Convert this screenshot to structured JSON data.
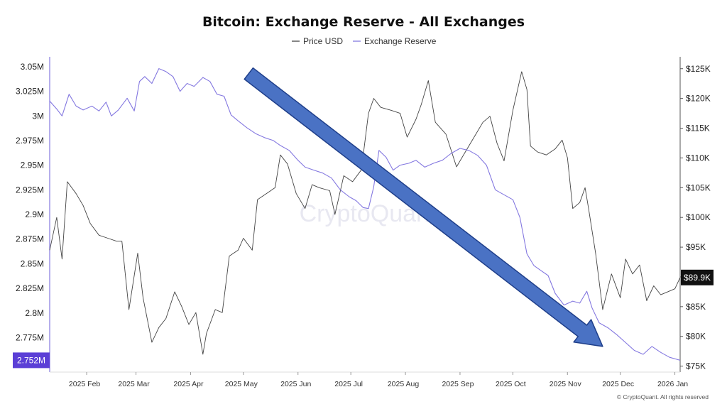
{
  "chart_data": {
    "type": "line",
    "title": "Bitcoin: Exchange Reserve - All Exchanges",
    "x_range": [
      "2025-01-11",
      "2026-01-04"
    ],
    "x_ticks": [
      "2025 Feb",
      "2025 Mar",
      "2025 Apr",
      "2025 May",
      "2025 Jun",
      "2025 Jul",
      "2025 Aug",
      "2025 Sep",
      "2025 Oct",
      "2025 Nov",
      "2025 Dec",
      "2026 Jan"
    ],
    "y_left": {
      "range": [
        2740000,
        3060000
      ],
      "ticks": [
        2775000,
        2800000,
        2825000,
        2850000,
        2875000,
        2900000,
        2925000,
        2950000,
        2975000,
        3000000,
        3025000,
        3050000
      ],
      "tick_labels": [
        "2.775M",
        "2.8M",
        "2.825M",
        "2.85M",
        "2.875M",
        "2.9M",
        "2.925M",
        "2.95M",
        "2.975M",
        "3M",
        "3.025M",
        "3.05M"
      ],
      "current_label": "2.752M",
      "current_value": 2752000
    },
    "y_right": {
      "range": [
        74000,
        127000
      ],
      "ticks": [
        75000,
        80000,
        85000,
        90000,
        95000,
        100000,
        105000,
        110000,
        115000,
        120000,
        125000
      ],
      "tick_labels": [
        "$75K",
        "$80K",
        "$85K",
        "$90K",
        "$95K",
        "$100K",
        "$105K",
        "$110K",
        "$115K",
        "$120K",
        "$125K"
      ],
      "current_label": "$89.9K",
      "current_value": 89900
    },
    "series": [
      {
        "name": "Price USD",
        "axis": "right",
        "color": "#444444",
        "points": [
          [
            "2025-01-11",
            94500
          ],
          [
            "2025-01-15",
            100000
          ],
          [
            "2025-01-18",
            93000
          ],
          [
            "2025-01-21",
            106000
          ],
          [
            "2025-01-26",
            104000
          ],
          [
            "2025-01-30",
            102000
          ],
          [
            "2025-02-03",
            99000
          ],
          [
            "2025-02-08",
            97000
          ],
          [
            "2025-02-13",
            96500
          ],
          [
            "2025-02-18",
            96000
          ],
          [
            "2025-02-21",
            96000
          ],
          [
            "2025-02-25",
            84500
          ],
          [
            "2025-03-02",
            94000
          ],
          [
            "2025-03-05",
            86500
          ],
          [
            "2025-03-10",
            79000
          ],
          [
            "2025-03-14",
            81500
          ],
          [
            "2025-03-18",
            83000
          ],
          [
            "2025-03-23",
            87500
          ],
          [
            "2025-03-27",
            85000
          ],
          [
            "2025-03-31",
            82000
          ],
          [
            "2025-04-04",
            84000
          ],
          [
            "2025-04-08",
            77000
          ],
          [
            "2025-04-10",
            80500
          ],
          [
            "2025-04-15",
            84500
          ],
          [
            "2025-04-19",
            84000
          ],
          [
            "2025-04-23",
            93500
          ],
          [
            "2025-04-28",
            94500
          ],
          [
            "2025-05-01",
            96500
          ],
          [
            "2025-05-06",
            94500
          ],
          [
            "2025-05-09",
            103000
          ],
          [
            "2025-05-14",
            104000
          ],
          [
            "2025-05-19",
            105000
          ],
          [
            "2025-05-22",
            110500
          ],
          [
            "2025-05-26",
            109000
          ],
          [
            "2025-05-31",
            104000
          ],
          [
            "2025-06-05",
            101500
          ],
          [
            "2025-06-09",
            105500
          ],
          [
            "2025-06-13",
            105000
          ],
          [
            "2025-06-19",
            104500
          ],
          [
            "2025-06-22",
            100500
          ],
          [
            "2025-06-27",
            107000
          ],
          [
            "2025-07-02",
            106000
          ],
          [
            "2025-07-07",
            108000
          ],
          [
            "2025-07-11",
            117500
          ],
          [
            "2025-07-14",
            120000
          ],
          [
            "2025-07-18",
            118500
          ],
          [
            "2025-07-24",
            118000
          ],
          [
            "2025-07-29",
            117500
          ],
          [
            "2025-08-02",
            113500
          ],
          [
            "2025-08-07",
            116500
          ],
          [
            "2025-08-10",
            119000
          ],
          [
            "2025-08-14",
            123000
          ],
          [
            "2025-08-18",
            116000
          ],
          [
            "2025-08-24",
            114000
          ],
          [
            "2025-08-30",
            108500
          ],
          [
            "2025-09-04",
            111000
          ],
          [
            "2025-09-10",
            114000
          ],
          [
            "2025-09-14",
            116000
          ],
          [
            "2025-09-18",
            117000
          ],
          [
            "2025-09-22",
            112500
          ],
          [
            "2025-09-26",
            109500
          ],
          [
            "2025-10-01",
            118000
          ],
          [
            "2025-10-06",
            124500
          ],
          [
            "2025-10-09",
            121500
          ],
          [
            "2025-10-11",
            112000
          ],
          [
            "2025-10-15",
            111000
          ],
          [
            "2025-10-20",
            110500
          ],
          [
            "2025-10-25",
            111500
          ],
          [
            "2025-10-29",
            113000
          ],
          [
            "2025-11-01",
            110000
          ],
          [
            "2025-11-04",
            101500
          ],
          [
            "2025-11-08",
            102500
          ],
          [
            "2025-11-11",
            105000
          ],
          [
            "2025-11-13",
            101500
          ],
          [
            "2025-11-17",
            94000
          ],
          [
            "2025-11-21",
            84500
          ],
          [
            "2025-11-26",
            90500
          ],
          [
            "2025-12-01",
            86500
          ],
          [
            "2025-12-04",
            93000
          ],
          [
            "2025-12-08",
            90500
          ],
          [
            "2025-12-12",
            92000
          ],
          [
            "2025-12-16",
            86000
          ],
          [
            "2025-12-20",
            88500
          ],
          [
            "2025-12-24",
            87000
          ],
          [
            "2025-12-28",
            87500
          ],
          [
            "2026-01-01",
            88000
          ],
          [
            "2026-01-04",
            89900
          ]
        ]
      },
      {
        "name": "Exchange Reserve",
        "axis": "left",
        "color": "#8478e0",
        "points": [
          [
            "2025-01-11",
            3015000
          ],
          [
            "2025-01-15",
            3007000
          ],
          [
            "2025-01-18",
            3000000
          ],
          [
            "2025-01-22",
            3022000
          ],
          [
            "2025-01-26",
            3010000
          ],
          [
            "2025-01-30",
            3006000
          ],
          [
            "2025-02-04",
            3010000
          ],
          [
            "2025-02-08",
            3005000
          ],
          [
            "2025-02-12",
            3014000
          ],
          [
            "2025-02-15",
            3000000
          ],
          [
            "2025-02-19",
            3006000
          ],
          [
            "2025-02-24",
            3018000
          ],
          [
            "2025-02-28",
            3005000
          ],
          [
            "2025-03-03",
            3035000
          ],
          [
            "2025-03-06",
            3040000
          ],
          [
            "2025-03-10",
            3033000
          ],
          [
            "2025-03-14",
            3048000
          ],
          [
            "2025-03-18",
            3045000
          ],
          [
            "2025-03-22",
            3040000
          ],
          [
            "2025-03-26",
            3025000
          ],
          [
            "2025-03-30",
            3033000
          ],
          [
            "2025-04-03",
            3030000
          ],
          [
            "2025-04-08",
            3039000
          ],
          [
            "2025-04-12",
            3035000
          ],
          [
            "2025-04-16",
            3022000
          ],
          [
            "2025-04-20",
            3020000
          ],
          [
            "2025-04-24",
            3001000
          ],
          [
            "2025-04-28",
            2995000
          ],
          [
            "2025-05-03",
            2988000
          ],
          [
            "2025-05-08",
            2982000
          ],
          [
            "2025-05-13",
            2978000
          ],
          [
            "2025-05-18",
            2975000
          ],
          [
            "2025-05-22",
            2970000
          ],
          [
            "2025-05-27",
            2965000
          ],
          [
            "2025-06-01",
            2955000
          ],
          [
            "2025-06-05",
            2948000
          ],
          [
            "2025-06-10",
            2945000
          ],
          [
            "2025-06-15",
            2942000
          ],
          [
            "2025-06-20",
            2937000
          ],
          [
            "2025-06-25",
            2925000
          ],
          [
            "2025-06-30",
            2918000
          ],
          [
            "2025-07-04",
            2914000
          ],
          [
            "2025-07-08",
            2907000
          ],
          [
            "2025-07-11",
            2906000
          ],
          [
            "2025-07-14",
            2928000
          ],
          [
            "2025-07-17",
            2965000
          ],
          [
            "2025-07-21",
            2958000
          ],
          [
            "2025-07-25",
            2945000
          ],
          [
            "2025-07-29",
            2950000
          ],
          [
            "2025-08-03",
            2952000
          ],
          [
            "2025-08-07",
            2955000
          ],
          [
            "2025-08-12",
            2948000
          ],
          [
            "2025-08-17",
            2952000
          ],
          [
            "2025-08-22",
            2955000
          ],
          [
            "2025-08-27",
            2962000
          ],
          [
            "2025-09-01",
            2967000
          ],
          [
            "2025-09-06",
            2965000
          ],
          [
            "2025-09-11",
            2960000
          ],
          [
            "2025-09-16",
            2950000
          ],
          [
            "2025-09-21",
            2925000
          ],
          [
            "2025-09-26",
            2920000
          ],
          [
            "2025-10-01",
            2915000
          ],
          [
            "2025-10-05",
            2897000
          ],
          [
            "2025-10-09",
            2860000
          ],
          [
            "2025-10-13",
            2848000
          ],
          [
            "2025-10-17",
            2843000
          ],
          [
            "2025-10-21",
            2838000
          ],
          [
            "2025-10-25",
            2820000
          ],
          [
            "2025-10-30",
            2808000
          ],
          [
            "2025-11-04",
            2812000
          ],
          [
            "2025-11-08",
            2810000
          ],
          [
            "2025-11-12",
            2822000
          ],
          [
            "2025-11-15",
            2805000
          ],
          [
            "2025-11-19",
            2790000
          ],
          [
            "2025-11-24",
            2785000
          ],
          [
            "2025-11-29",
            2778000
          ],
          [
            "2025-12-04",
            2770000
          ],
          [
            "2025-12-09",
            2762000
          ],
          [
            "2025-12-14",
            2758000
          ],
          [
            "2025-12-19",
            2766000
          ],
          [
            "2025-12-24",
            2760000
          ],
          [
            "2025-12-29",
            2755000
          ],
          [
            "2026-01-04",
            2752000
          ]
        ]
      }
    ],
    "legend_position": "top-center",
    "grid": false,
    "annotations": [
      {
        "type": "arrow",
        "color": "#4a72c4",
        "from": [
          "2025-05-04",
          3043000
        ],
        "to": [
          "2025-11-21",
          2766000
        ]
      }
    ],
    "watermark": "CryptoQuant",
    "source_note": "© CryptoQuant. All rights reserved"
  }
}
